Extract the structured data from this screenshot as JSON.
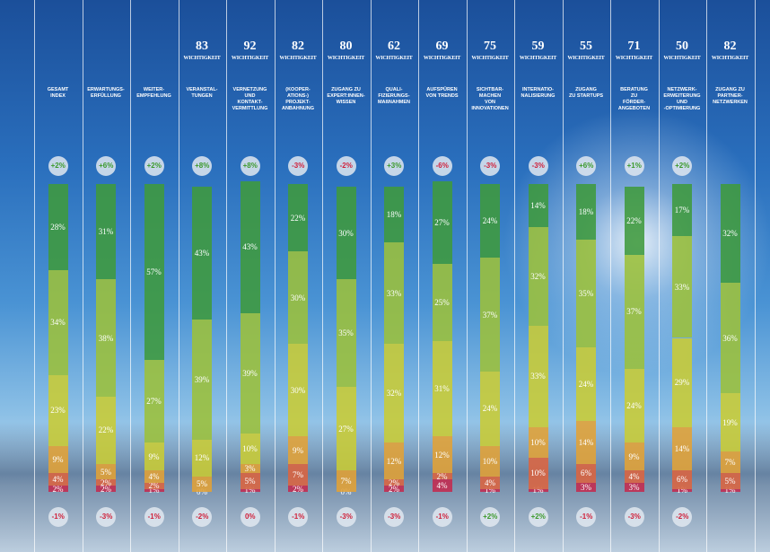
{
  "chart_data": {
    "type": "stacked-bar",
    "importance_label": "WICHTIGKEIT",
    "categories": [
      "GESAMT\nINDEX",
      "ERWARTUNGS-\nERFÜLLUNG",
      "WEITER-\nEMPFEHLUNG",
      "VERANSTAL-\nTUNGEN",
      "VERNETZUNG\nUND\nKONTAKT-\nVERMITTLUNG",
      "(KOOPER-\nATIONS-)\nPROJEKT-\nANBAHNUNG",
      "ZUGANG ZU\nEXPERT:INNEN-\nWISSEN",
      "QUALI-\nFIZIERUNGS-\nMAßNAHMEN",
      "AUFSPÜREN\nVON TRENDS",
      "SICHTBAR-\nMACHEN\nVON\nINNOVATIONEN",
      "INTERNATIO-\nNALISIERUNG",
      "ZUGANG\nZU STARTUPS",
      "BERATUNG\nZU\nFÖRDER-\nANGEBOTEN",
      "NETZWERK-\nERWEITERUNG\nUND\n-OPTIMIERUNG",
      "ZUGANG ZU\nPARTNER-\nNETZWERKEN"
    ],
    "importance": [
      null,
      null,
      null,
      83,
      92,
      82,
      80,
      62,
      69,
      75,
      59,
      55,
      71,
      50,
      82
    ],
    "top_change": {
      "values": [
        2,
        6,
        2,
        8,
        8,
        -3,
        -2,
        3,
        -6,
        -3,
        -3,
        6,
        1,
        2,
        null
      ],
      "value_labels": [
        "+2%",
        "+6%",
        "+2%",
        "+8%",
        "+8%",
        "-3%",
        "-2%",
        "+3%",
        "-6%",
        "-3%",
        "-3%",
        "+6%",
        "+1%",
        "+2%",
        null
      ]
    },
    "bottom_change": {
      "values": [
        -1,
        -3,
        -1,
        -2,
        0,
        -1,
        -3,
        -3,
        -1,
        2,
        2,
        -1,
        -3,
        -2,
        null
      ],
      "value_labels": [
        "-1%",
        "-3%",
        "-1%",
        "-2%",
        "0%",
        "-1%",
        "-3%",
        "-3%",
        "-1%",
        "+2%",
        "+2%",
        "-1%",
        "-3%",
        "-2%",
        null
      ]
    },
    "ylim": [
      0,
      100
    ],
    "series": [
      {
        "color": "#3f9a3c",
        "values": [
          28,
          31,
          57,
          43,
          43,
          22,
          30,
          18,
          27,
          24,
          14,
          18,
          22,
          17,
          32
        ],
        "value_labels": [
          "28%",
          "31%",
          "57%",
          "43%",
          "43%",
          "22%",
          "30%",
          "18%",
          "27%",
          "24%",
          "14%",
          "18%",
          "22%",
          "17%",
          "32%"
        ]
      },
      {
        "color": "#9cc03a",
        "values": [
          34,
          38,
          27,
          39,
          39,
          30,
          35,
          33,
          25,
          37,
          32,
          35,
          37,
          33,
          36
        ],
        "value_labels": [
          "34%",
          "38%",
          "27%",
          "39%",
          "39%",
          "30%",
          "35%",
          "33%",
          "25%",
          "37%",
          "32%",
          "35%",
          "37%",
          "33%",
          "36%"
        ]
      },
      {
        "color": "#c9cc34",
        "values": [
          23,
          22,
          9,
          12,
          10,
          30,
          27,
          32,
          31,
          24,
          33,
          24,
          24,
          29,
          19
        ],
        "value_labels": [
          "23%",
          "22%",
          "9%",
          "12%",
          "10%",
          "30%",
          "27%",
          "32%",
          "31%",
          "24%",
          "33%",
          "24%",
          "24%",
          "29%",
          "19%"
        ]
      },
      {
        "color": "#e3a236",
        "values": [
          9,
          5,
          4,
          5,
          3,
          9,
          7,
          12,
          12,
          10,
          10,
          14,
          9,
          14,
          7
        ],
        "value_labels": [
          "9%",
          "5%",
          "4%",
          "5%",
          "3%",
          "9%",
          "7%",
          "12%",
          "12%",
          "10%",
          "10%",
          "14%",
          "9%",
          "14%",
          "7%"
        ]
      },
      {
        "color": "#dc6440",
        "values": [
          4,
          2,
          2,
          0,
          5,
          7,
          0,
          2,
          2,
          4,
          10,
          6,
          4,
          6,
          5
        ],
        "value_labels": [
          "4%",
          "2%",
          "2%",
          "0%",
          "5%",
          "7%",
          "0%",
          "2%",
          "2%",
          "4%",
          "10%",
          "6%",
          "4%",
          "6%",
          "5%"
        ]
      },
      {
        "color": "#c42a4e",
        "values": [
          2,
          2,
          1,
          null,
          1,
          2,
          null,
          2,
          4,
          1,
          1,
          3,
          3,
          1,
          1
        ],
        "value_labels": [
          "2%",
          "2%",
          "1%",
          null,
          "1%",
          "2%",
          null,
          "2%",
          "4%",
          "1%",
          "1%",
          "3%",
          "3%",
          "1%",
          "1%"
        ]
      }
    ]
  }
}
